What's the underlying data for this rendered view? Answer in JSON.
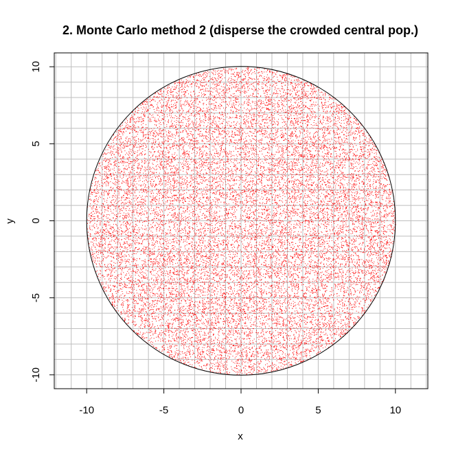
{
  "chart_data": {
    "type": "scatter",
    "title": "2. Monte Carlo method 2 (disperse the crowded central pop.)",
    "xlabel": "x",
    "ylabel": "y",
    "xlim": [
      -12.1,
      12.1
    ],
    "ylim": [
      -10.9,
      10.9
    ],
    "xticks": [
      -10,
      -5,
      0,
      5,
      10
    ],
    "yticks": [
      -10,
      -5,
      0,
      5,
      10
    ],
    "x_tick_labels": [
      "-10",
      "-5",
      "0",
      "5",
      "10"
    ],
    "y_tick_labels": [
      "-10",
      "-5",
      "0",
      "5",
      "10"
    ],
    "grid": true,
    "grid_step": 1,
    "grid_color": "#bebebe",
    "point_color": "#ff0000",
    "circle": {
      "center": [
        0,
        0
      ],
      "radius": 10,
      "color": "#000000"
    },
    "points": {
      "distribution": "uniform in disk",
      "count": 20000,
      "region": "x^2 + y^2 <= 100"
    }
  }
}
